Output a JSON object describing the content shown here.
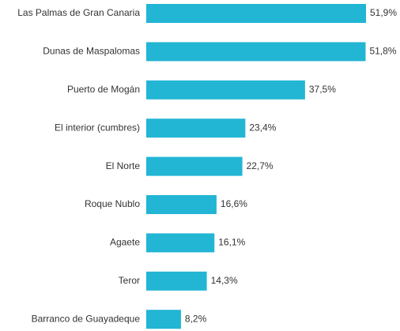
{
  "chart_data": {
    "type": "bar",
    "orientation": "horizontal",
    "categories": [
      "Las Palmas de Gran Canaria",
      "Dunas de Maspalomas",
      "Puerto de Mogán",
      "El interior (cumbres)",
      "El Norte",
      "Roque Nublo",
      "Agaete",
      "Teror",
      "Barranco de Guayadeque"
    ],
    "values": [
      51.9,
      51.8,
      37.5,
      23.4,
      22.7,
      16.6,
      16.1,
      14.3,
      8.2
    ],
    "value_labels": [
      "51,9%",
      "51,8%",
      "37,5%",
      "23,4%",
      "22,7%",
      "16,6%",
      "16,1%",
      "14,3%",
      "8,2%"
    ],
    "color": "#22b5d4"
  }
}
